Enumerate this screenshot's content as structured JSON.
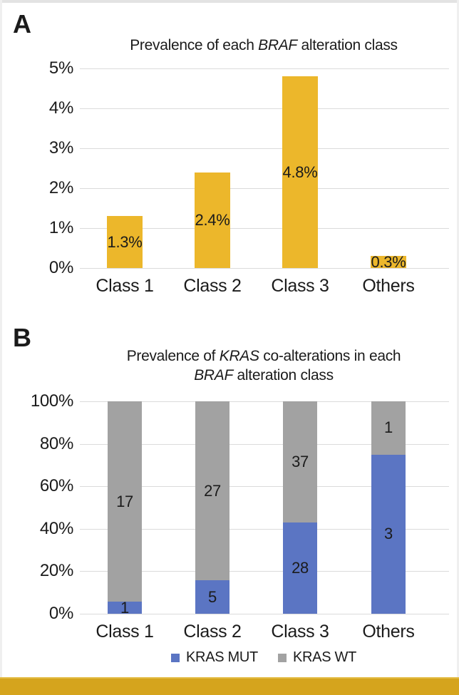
{
  "figure": {
    "panel_a_letter": "A",
    "panel_b_letter": "B",
    "accent_bar_color": "#D5A41D",
    "text_color": "#1b1b1b",
    "gridline_color": "#dbdbdb"
  },
  "chart_data": [
    {
      "panel": "A",
      "type": "bar",
      "title_lines": [
        [
          {
            "text": "Prevalence of each "
          },
          {
            "text": "BRAF",
            "italic": true
          },
          {
            "text": " alteration class"
          }
        ]
      ],
      "categories": [
        "Class 1",
        "Class 2",
        "Class 3",
        "Others"
      ],
      "values": [
        1.3,
        2.4,
        4.8,
        0.3
      ],
      "bar_labels": [
        "1.3%",
        "2.4%",
        "4.8%",
        "0.3%"
      ],
      "ylim": [
        0,
        5
      ],
      "ytick_labels": [
        "5%",
        "4%",
        "3%",
        "2%",
        "1%",
        "0%"
      ],
      "grid": true,
      "legend": "none",
      "bar_color": "#ECB72B"
    },
    {
      "panel": "B",
      "type": "stacked-bar-100",
      "title_lines": [
        [
          {
            "text": "Prevalence of "
          },
          {
            "text": "KRAS",
            "italic": true
          },
          {
            "text": " co-alterations in each"
          }
        ],
        [
          {
            "text": "BRAF",
            "italic": true
          },
          {
            "text": " alteration class"
          }
        ]
      ],
      "categories": [
        "Class 1",
        "Class 2",
        "Class 3",
        "Others"
      ],
      "series": [
        {
          "name": "KRAS MUT",
          "color": "#5B75C3",
          "counts": [
            1,
            5,
            28,
            3
          ]
        },
        {
          "name": "KRAS WT",
          "color": "#A2A2A2",
          "counts": [
            17,
            27,
            37,
            1
          ]
        }
      ],
      "ylim": [
        0,
        100
      ],
      "ytick_labels": [
        "100%",
        "80%",
        "60%",
        "40%",
        "20%",
        "0%"
      ],
      "grid": true,
      "legend": "bottom"
    }
  ]
}
